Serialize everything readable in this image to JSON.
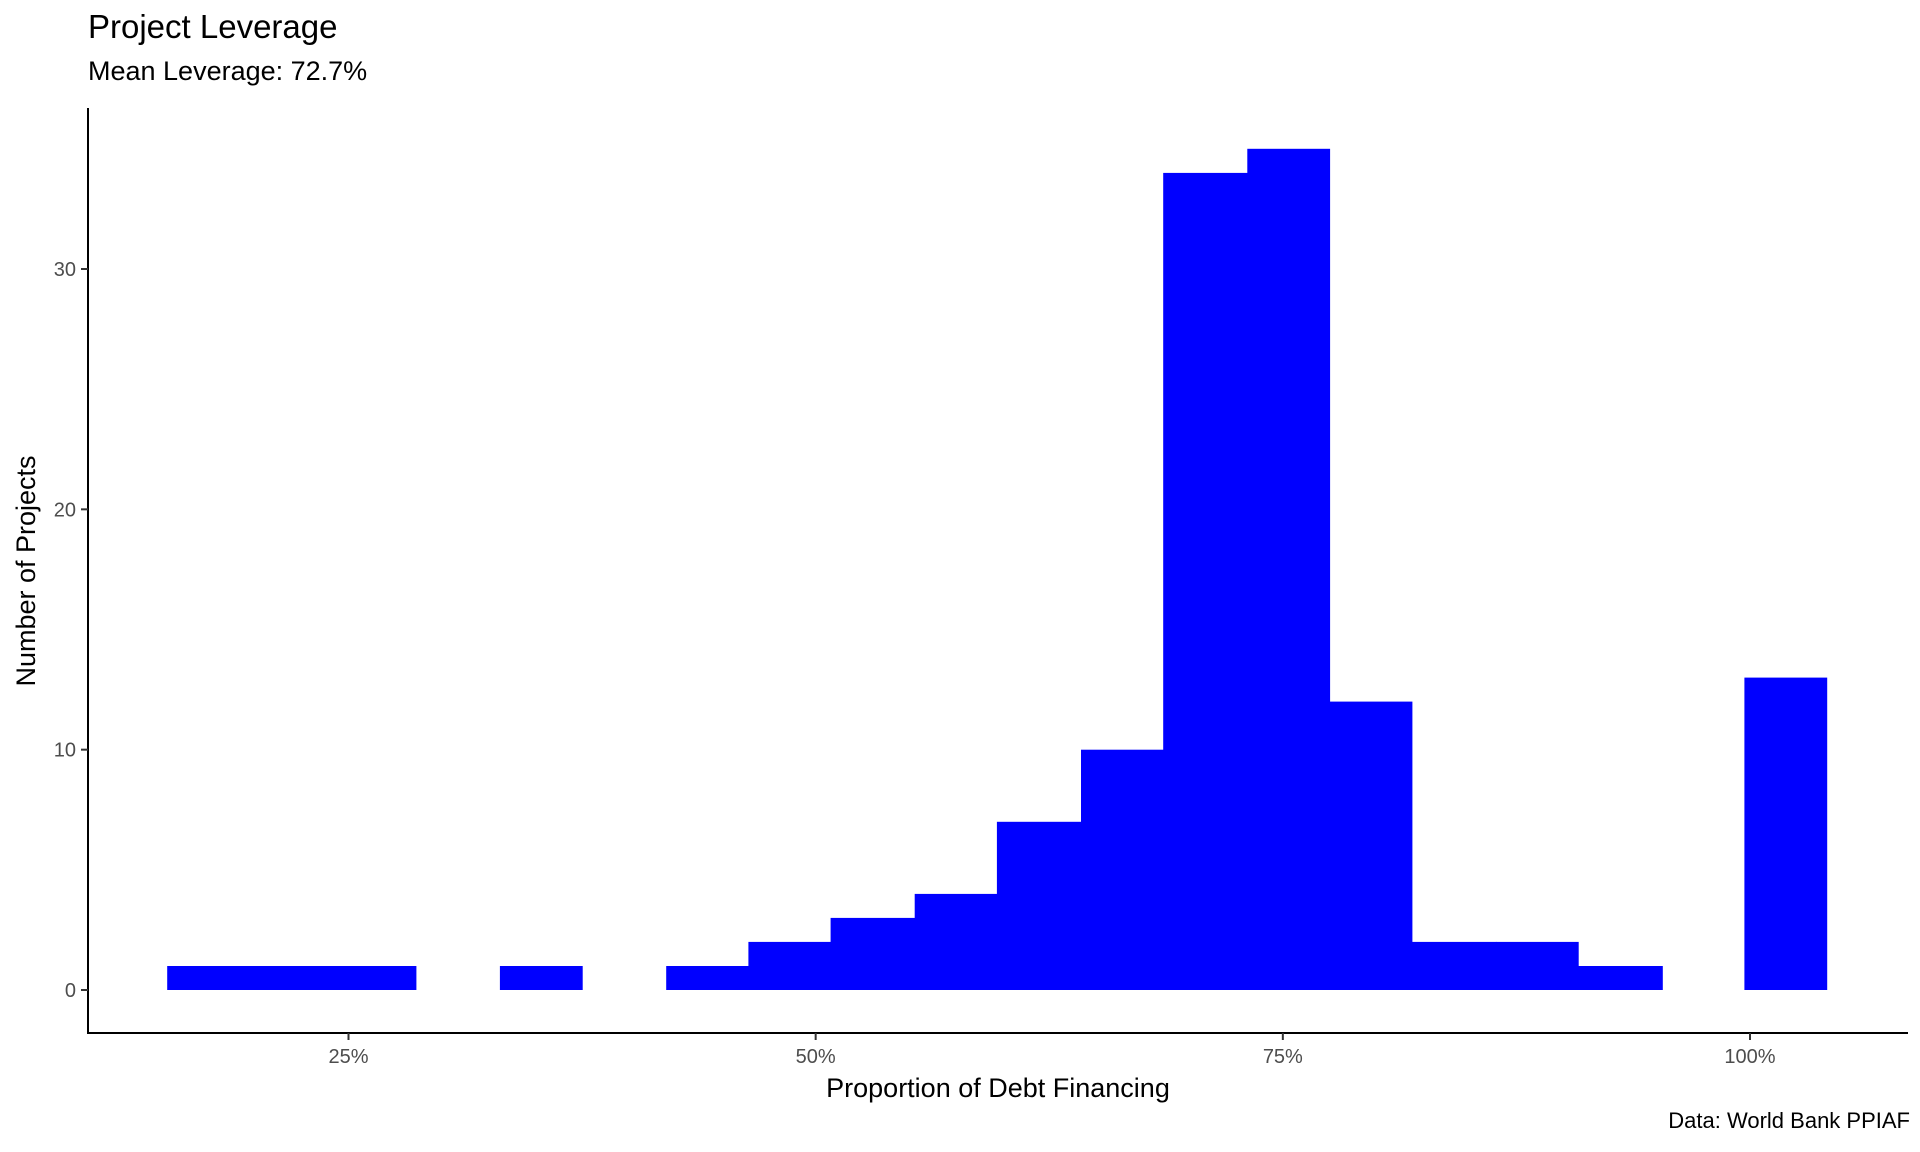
{
  "chart_data": {
    "type": "bar",
    "title": "Project Leverage",
    "subtitle": "Mean Leverage: 72.7%",
    "caption": "Data: World Bank PPIAF",
    "xlabel": "Proportion of Debt Financing",
    "ylabel": "Number of Projects",
    "xlim": [
      0.153,
      1.063
    ],
    "ylim": [
      -1.75,
      36.75
    ],
    "x_ticks": [
      0.25,
      0.5,
      0.75,
      1.0
    ],
    "x_tick_labels": [
      "25%",
      "50%",
      "75%",
      "100%"
    ],
    "y_ticks": [
      0,
      10,
      20,
      30
    ],
    "y_tick_labels": [
      "0",
      "10",
      "20",
      "30"
    ],
    "bar_color": "#0000ff",
    "grid": false,
    "bins": [
      {
        "x0": 0.153,
        "x1": 0.197,
        "count": 1
      },
      {
        "x0": 0.197,
        "x1": 0.242,
        "count": 1
      },
      {
        "x0": 0.242,
        "x1": 0.286,
        "count": 1
      },
      {
        "x0": 0.331,
        "x1": 0.375,
        "count": 1
      },
      {
        "x0": 0.42,
        "x1": 0.464,
        "count": 1
      },
      {
        "x0": 0.464,
        "x1": 0.508,
        "count": 2
      },
      {
        "x0": 0.508,
        "x1": 0.553,
        "count": 3
      },
      {
        "x0": 0.553,
        "x1": 0.597,
        "count": 4
      },
      {
        "x0": 0.597,
        "x1": 0.642,
        "count": 7
      },
      {
        "x0": 0.642,
        "x1": 0.686,
        "count": 10
      },
      {
        "x0": 0.686,
        "x1": 0.731,
        "count": 34
      },
      {
        "x0": 0.731,
        "x1": 0.775,
        "count": 35
      },
      {
        "x0": 0.775,
        "x1": 0.819,
        "count": 12
      },
      {
        "x0": 0.819,
        "x1": 0.864,
        "count": 2
      },
      {
        "x0": 0.864,
        "x1": 0.908,
        "count": 2
      },
      {
        "x0": 0.908,
        "x1": 0.953,
        "count": 1
      },
      {
        "x0": 0.997,
        "x1": 1.041,
        "count": 13
      }
    ]
  }
}
